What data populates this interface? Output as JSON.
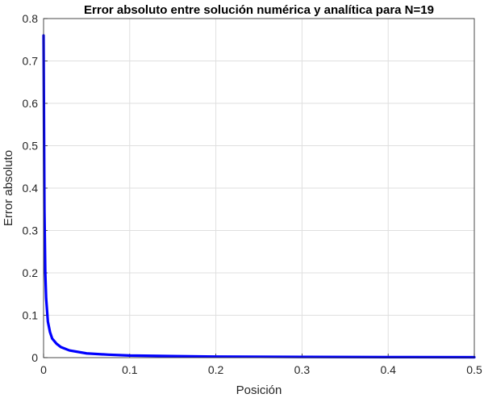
{
  "chart_data": {
    "type": "line",
    "title": "Error absoluto entre solución numérica y analítica para N=19",
    "xlabel": "Posición",
    "ylabel": "Error absoluto",
    "xlim": [
      0,
      0.5
    ],
    "ylim": [
      0,
      0.8
    ],
    "xticks": [
      "0",
      "0.1",
      "0.2",
      "0.3",
      "0.4",
      "0.5"
    ],
    "yticks": [
      "0",
      "0.1",
      "0.2",
      "0.3",
      "0.4",
      "0.5",
      "0.6",
      "0.7",
      "0.8"
    ],
    "grid": true,
    "series": [
      {
        "color": "#0000ff",
        "x": [
          0,
          0.001,
          0.002,
          0.003,
          0.005,
          0.0075,
          0.01,
          0.015,
          0.02,
          0.03,
          0.05,
          0.075,
          0.1,
          0.15,
          0.2,
          0.3,
          0.4,
          0.5
        ],
        "y": [
          0.76,
          0.35,
          0.2,
          0.14,
          0.085,
          0.06,
          0.045,
          0.033,
          0.025,
          0.017,
          0.01,
          0.007,
          0.005,
          0.0035,
          0.0025,
          0.0017,
          0.0012,
          0.001
        ]
      }
    ]
  }
}
